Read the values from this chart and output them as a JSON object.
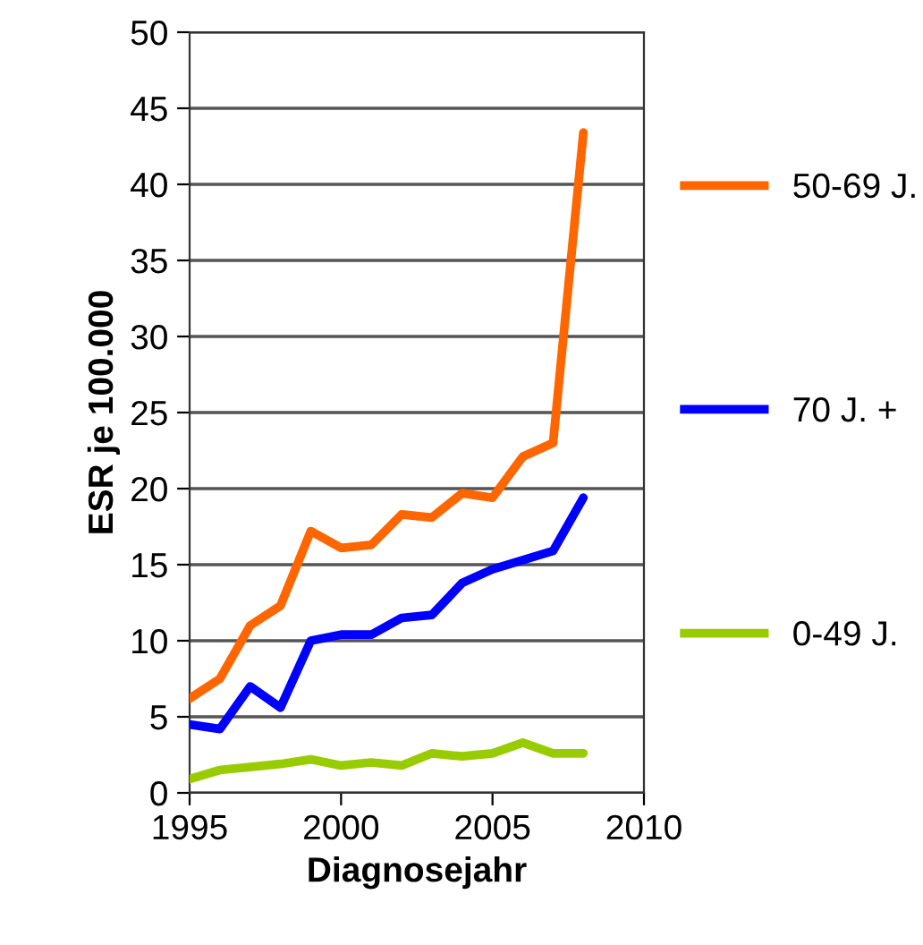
{
  "chart_data": {
    "type": "line",
    "xlabel": "Diagnosejahr",
    "ylabel": "ESR je 100.000",
    "x": [
      1995,
      1996,
      1997,
      1998,
      1999,
      2000,
      2001,
      2002,
      2003,
      2004,
      2005,
      2006,
      2007,
      2008
    ],
    "series": [
      {
        "name": "50-69 J.",
        "color": "#ff6600",
        "values": [
          6.2,
          7.5,
          11.0,
          12.3,
          17.2,
          16.1,
          16.3,
          18.3,
          18.1,
          19.7,
          19.4,
          22.1,
          23.0,
          43.4
        ]
      },
      {
        "name": "70 J. +",
        "color": "#0000ff",
        "values": [
          4.5,
          4.2,
          7.0,
          5.6,
          10.0,
          10.4,
          10.4,
          11.5,
          11.7,
          13.8,
          14.7,
          15.3,
          15.9,
          19.4
        ]
      },
      {
        "name": "0-49 J.",
        "color": "#99cc00",
        "values": [
          0.9,
          1.5,
          1.7,
          1.9,
          2.2,
          1.8,
          2.0,
          1.8,
          2.6,
          2.4,
          2.6,
          3.3,
          2.6,
          2.6
        ]
      }
    ],
    "xlim": [
      1995,
      2010
    ],
    "xticks": [
      1995,
      2000,
      2005,
      2010
    ],
    "ylim": [
      0,
      50
    ],
    "yticks": [
      0,
      5,
      10,
      15,
      20,
      25,
      30,
      35,
      40,
      45,
      50
    ],
    "grid": "y",
    "legend": "right",
    "marker": "none",
    "line_style": "solid"
  }
}
